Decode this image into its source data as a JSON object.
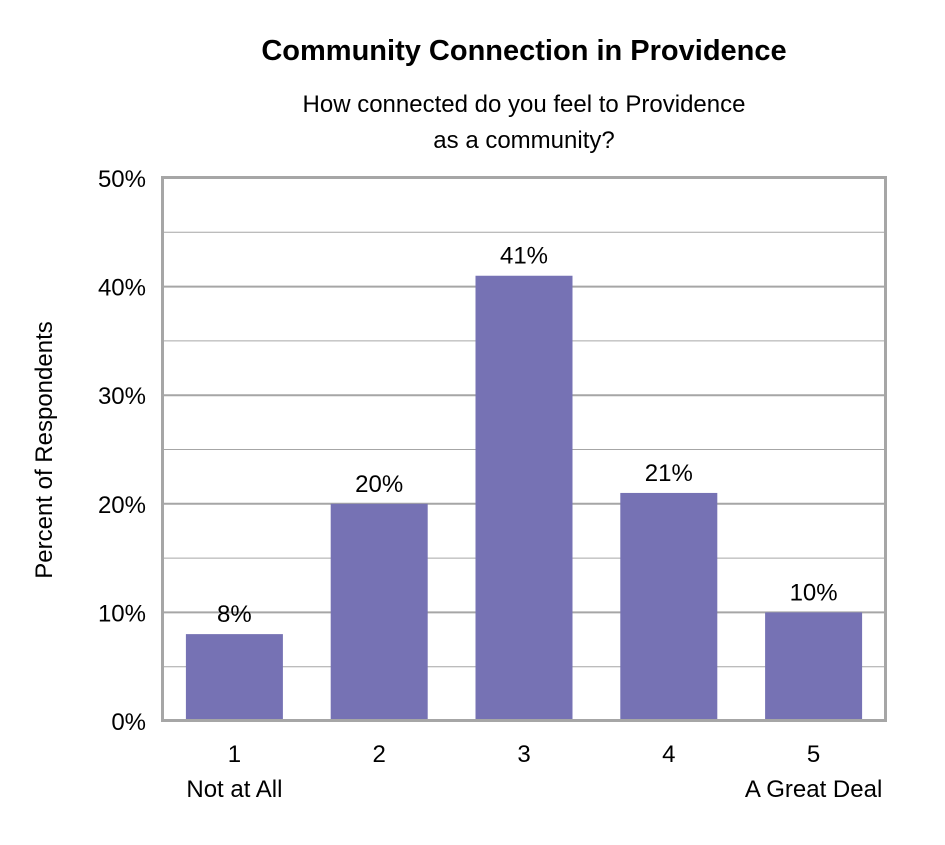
{
  "chart_data": {
    "type": "bar",
    "title": "Community Connection in Providence",
    "subtitle": [
      "How connected do you feel to Providence",
      "as a community?"
    ],
    "ylabel": "Percent of Respondents",
    "xlabel": "",
    "categories": [
      "1",
      "2",
      "3",
      "4",
      "5"
    ],
    "category_sublabels": [
      "Not at All",
      "",
      "",
      "",
      "A Great Deal"
    ],
    "values": [
      8,
      20,
      41,
      21,
      10
    ],
    "data_labels": [
      "8%",
      "20%",
      "41%",
      "21%",
      "10%"
    ],
    "ylim": [
      0,
      50
    ],
    "yticks": [
      0,
      10,
      20,
      30,
      40,
      50
    ],
    "ytick_labels": [
      "0%",
      "10%",
      "20%",
      "30%",
      "40%",
      "50%"
    ],
    "minor_gridlines": [
      5,
      15,
      25,
      35,
      45
    ],
    "grid": true,
    "colors": {
      "bar": "#7672b4",
      "grid": "#a6a6a6"
    }
  }
}
